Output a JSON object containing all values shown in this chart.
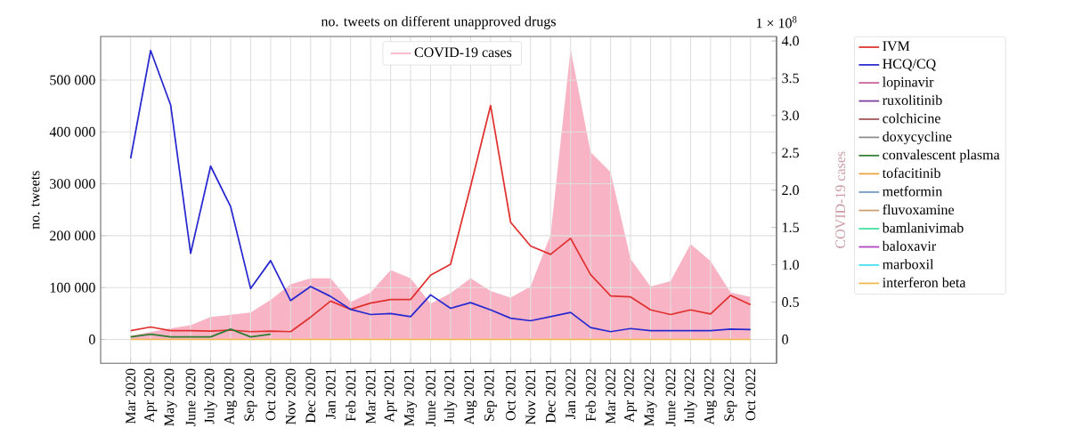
{
  "chart_data": {
    "type": "line",
    "title": "no. tweets on different unapproved drugs",
    "ylabel": "no. tweets",
    "y2label": "COVID-19 cases",
    "annotations": [
      "1 × 10$^{8}$"
    ],
    "categories": [
      "Mar 2020",
      "Apr 2020",
      "May 2020",
      "June 2020",
      "July 2020",
      "Aug 2020",
      "Sep 2020",
      "Oct 2020",
      "Nov 2020",
      "Dec 2020",
      "Jan 2021",
      "Feb 2021",
      "Mar 2021",
      "Apr 2021",
      "May 2021",
      "June 2021",
      "July 2021",
      "Aug 2021",
      "Sep 2021",
      "Oct 2021",
      "Nov 2021",
      "Dec 2021",
      "Jan 2022",
      "Feb 2022",
      "Mar 2022",
      "Apr 2022",
      "May 2022",
      "June 2022",
      "July 2022",
      "Aug 2022",
      "Sep 2022",
      "Oct 2022"
    ],
    "series": [
      {
        "name": "COVID-19 cases",
        "type": "area",
        "axis": "y2",
        "color": "#f8b4c4",
        "values": [
          0.05,
          0.1,
          0.15,
          0.19,
          0.3,
          0.33,
          0.36,
          0.53,
          0.74,
          0.82,
          0.82,
          0.5,
          0.63,
          0.93,
          0.82,
          0.48,
          0.62,
          0.82,
          0.65,
          0.56,
          0.71,
          1.4,
          3.89,
          2.51,
          2.24,
          1.08,
          0.71,
          0.78,
          1.28,
          1.05,
          0.63,
          0.57
        ]
      },
      {
        "name": "IVM",
        "color": "#e03030",
        "values": [
          17000,
          24000,
          17000,
          17000,
          16000,
          18000,
          15000,
          16000,
          15000,
          43000,
          74000,
          58000,
          70000,
          77000,
          77000,
          124000,
          145000,
          295000,
          451000,
          226000,
          180000,
          164000,
          195000,
          125000,
          84000,
          82000,
          57000,
          48000,
          57000,
          49000,
          85000,
          67000
        ]
      },
      {
        "name": "HCQ/CQ",
        "color": "#2828d0",
        "values": [
          349000,
          557000,
          452000,
          166000,
          334000,
          256000,
          98000,
          152000,
          75000,
          102000,
          83000,
          58000,
          48000,
          50000,
          44000,
          86000,
          60000,
          71000,
          57000,
          41000,
          36000,
          44000,
          52000,
          23000,
          15000,
          21000,
          17000,
          17000,
          17000,
          17000,
          20000,
          19000
        ]
      },
      {
        "name": "lopinavir",
        "color": "#c8609a",
        "values": [
          null,
          null,
          null,
          null,
          null,
          null,
          null,
          null,
          null,
          null,
          null,
          null,
          null,
          null,
          null,
          null,
          null,
          null,
          null,
          null,
          null,
          null,
          null,
          null,
          null,
          null,
          null,
          null,
          null,
          null,
          null,
          null
        ]
      },
      {
        "name": "ruxolitinib",
        "color": "#7a3a98",
        "values": [
          null,
          null,
          null,
          null,
          null,
          null,
          null,
          null,
          null,
          null,
          null,
          null,
          null,
          null,
          null,
          null,
          null,
          null,
          null,
          null,
          null,
          null,
          null,
          null,
          null,
          null,
          null,
          null,
          null,
          null,
          null,
          null
        ]
      },
      {
        "name": "colchicine",
        "color": "#a05050",
        "values": [
          null,
          null,
          null,
          null,
          null,
          null,
          null,
          null,
          null,
          null,
          null,
          null,
          null,
          null,
          null,
          null,
          null,
          null,
          null,
          null,
          null,
          null,
          null,
          null,
          null,
          null,
          null,
          null,
          null,
          null,
          null,
          null
        ]
      },
      {
        "name": "doxycycline",
        "color": "#8c8c8c",
        "values": [
          null,
          null,
          null,
          null,
          null,
          null,
          null,
          null,
          null,
          null,
          null,
          null,
          null,
          null,
          null,
          null,
          null,
          null,
          null,
          null,
          null,
          null,
          null,
          null,
          null,
          null,
          null,
          null,
          null,
          null,
          null,
          null
        ]
      },
      {
        "name": "convalescent plasma",
        "color": "#2e7d32",
        "values": [
          5000,
          10000,
          5000,
          5000,
          5000,
          20000,
          5000,
          10000,
          null,
          null,
          null,
          null,
          null,
          null,
          null,
          null,
          null,
          null,
          null,
          null,
          null,
          null,
          null,
          null,
          null,
          null,
          null,
          null,
          null,
          null,
          null,
          null
        ]
      },
      {
        "name": "tofacitinib",
        "color": "#f0a040",
        "values": [
          null,
          null,
          null,
          null,
          null,
          null,
          null,
          null,
          null,
          null,
          null,
          null,
          null,
          null,
          null,
          null,
          null,
          null,
          null,
          null,
          null,
          null,
          null,
          null,
          null,
          null,
          null,
          null,
          null,
          null,
          null,
          null
        ]
      },
      {
        "name": "metformin",
        "color": "#7099c0",
        "values": [
          null,
          null,
          null,
          null,
          null,
          null,
          null,
          null,
          null,
          null,
          null,
          null,
          null,
          null,
          null,
          null,
          null,
          null,
          null,
          null,
          null,
          null,
          null,
          null,
          null,
          null,
          null,
          null,
          null,
          null,
          null,
          null
        ]
      },
      {
        "name": "fluvoxamine",
        "color": "#c8a070",
        "values": [
          null,
          null,
          null,
          null,
          null,
          null,
          null,
          null,
          null,
          null,
          null,
          null,
          null,
          null,
          null,
          null,
          null,
          null,
          null,
          null,
          null,
          null,
          null,
          null,
          null,
          null,
          null,
          null,
          null,
          null,
          null,
          null
        ]
      },
      {
        "name": "bamlanivimab",
        "color": "#40e0a0",
        "values": [
          null,
          null,
          null,
          null,
          null,
          null,
          null,
          null,
          null,
          null,
          null,
          null,
          null,
          null,
          null,
          null,
          null,
          null,
          null,
          null,
          null,
          null,
          null,
          null,
          null,
          null,
          null,
          null,
          null,
          null,
          null,
          null
        ]
      },
      {
        "name": "baloxavir",
        "color": "#b040c0",
        "values": [
          null,
          null,
          null,
          null,
          null,
          null,
          null,
          null,
          null,
          null,
          null,
          null,
          null,
          null,
          null,
          null,
          null,
          null,
          null,
          null,
          null,
          null,
          null,
          null,
          null,
          null,
          null,
          null,
          null,
          null,
          null,
          null
        ]
      },
      {
        "name": "marboxil",
        "color": "#40e0f0",
        "values": [
          null,
          null,
          null,
          null,
          null,
          null,
          null,
          null,
          null,
          null,
          null,
          null,
          null,
          null,
          null,
          null,
          null,
          null,
          null,
          null,
          null,
          null,
          null,
          null,
          null,
          null,
          null,
          null,
          null,
          null,
          null,
          null
        ]
      },
      {
        "name": "interferon beta",
        "color": "#f0b848",
        "values": [
          0,
          0,
          0,
          0,
          0,
          0,
          0,
          0,
          0,
          0,
          0,
          0,
          0,
          0,
          0,
          0,
          0,
          0,
          0,
          0,
          0,
          0,
          0,
          0,
          0,
          0,
          0,
          0,
          0,
          0,
          0,
          0
        ]
      }
    ],
    "ylim": [
      -46000,
      584000
    ],
    "yticks": [
      0,
      {
        "value": 100000,
        "label": "100 000"
      },
      {
        "value": 200000,
        "label": "200 000"
      },
      {
        "value": 300000,
        "label": "300 000"
      },
      {
        "value": 400000,
        "label": "400 000"
      },
      {
        "value": 500000,
        "label": "500 000"
      }
    ],
    "y2lim": [
      -0.32,
      4.06
    ],
    "y2ticks": [
      0,
      0.5,
      {
        "value": 1,
        "label": "1.0"
      },
      1.5,
      {
        "value": 2,
        "label": "2.0"
      },
      2.5,
      {
        "value": 3,
        "label": "3.0"
      },
      3.5,
      {
        "value": 4,
        "label": "4.0"
      }
    ],
    "grid": true,
    "legend": "right",
    "marker": "none",
    "line_style": "solid"
  }
}
